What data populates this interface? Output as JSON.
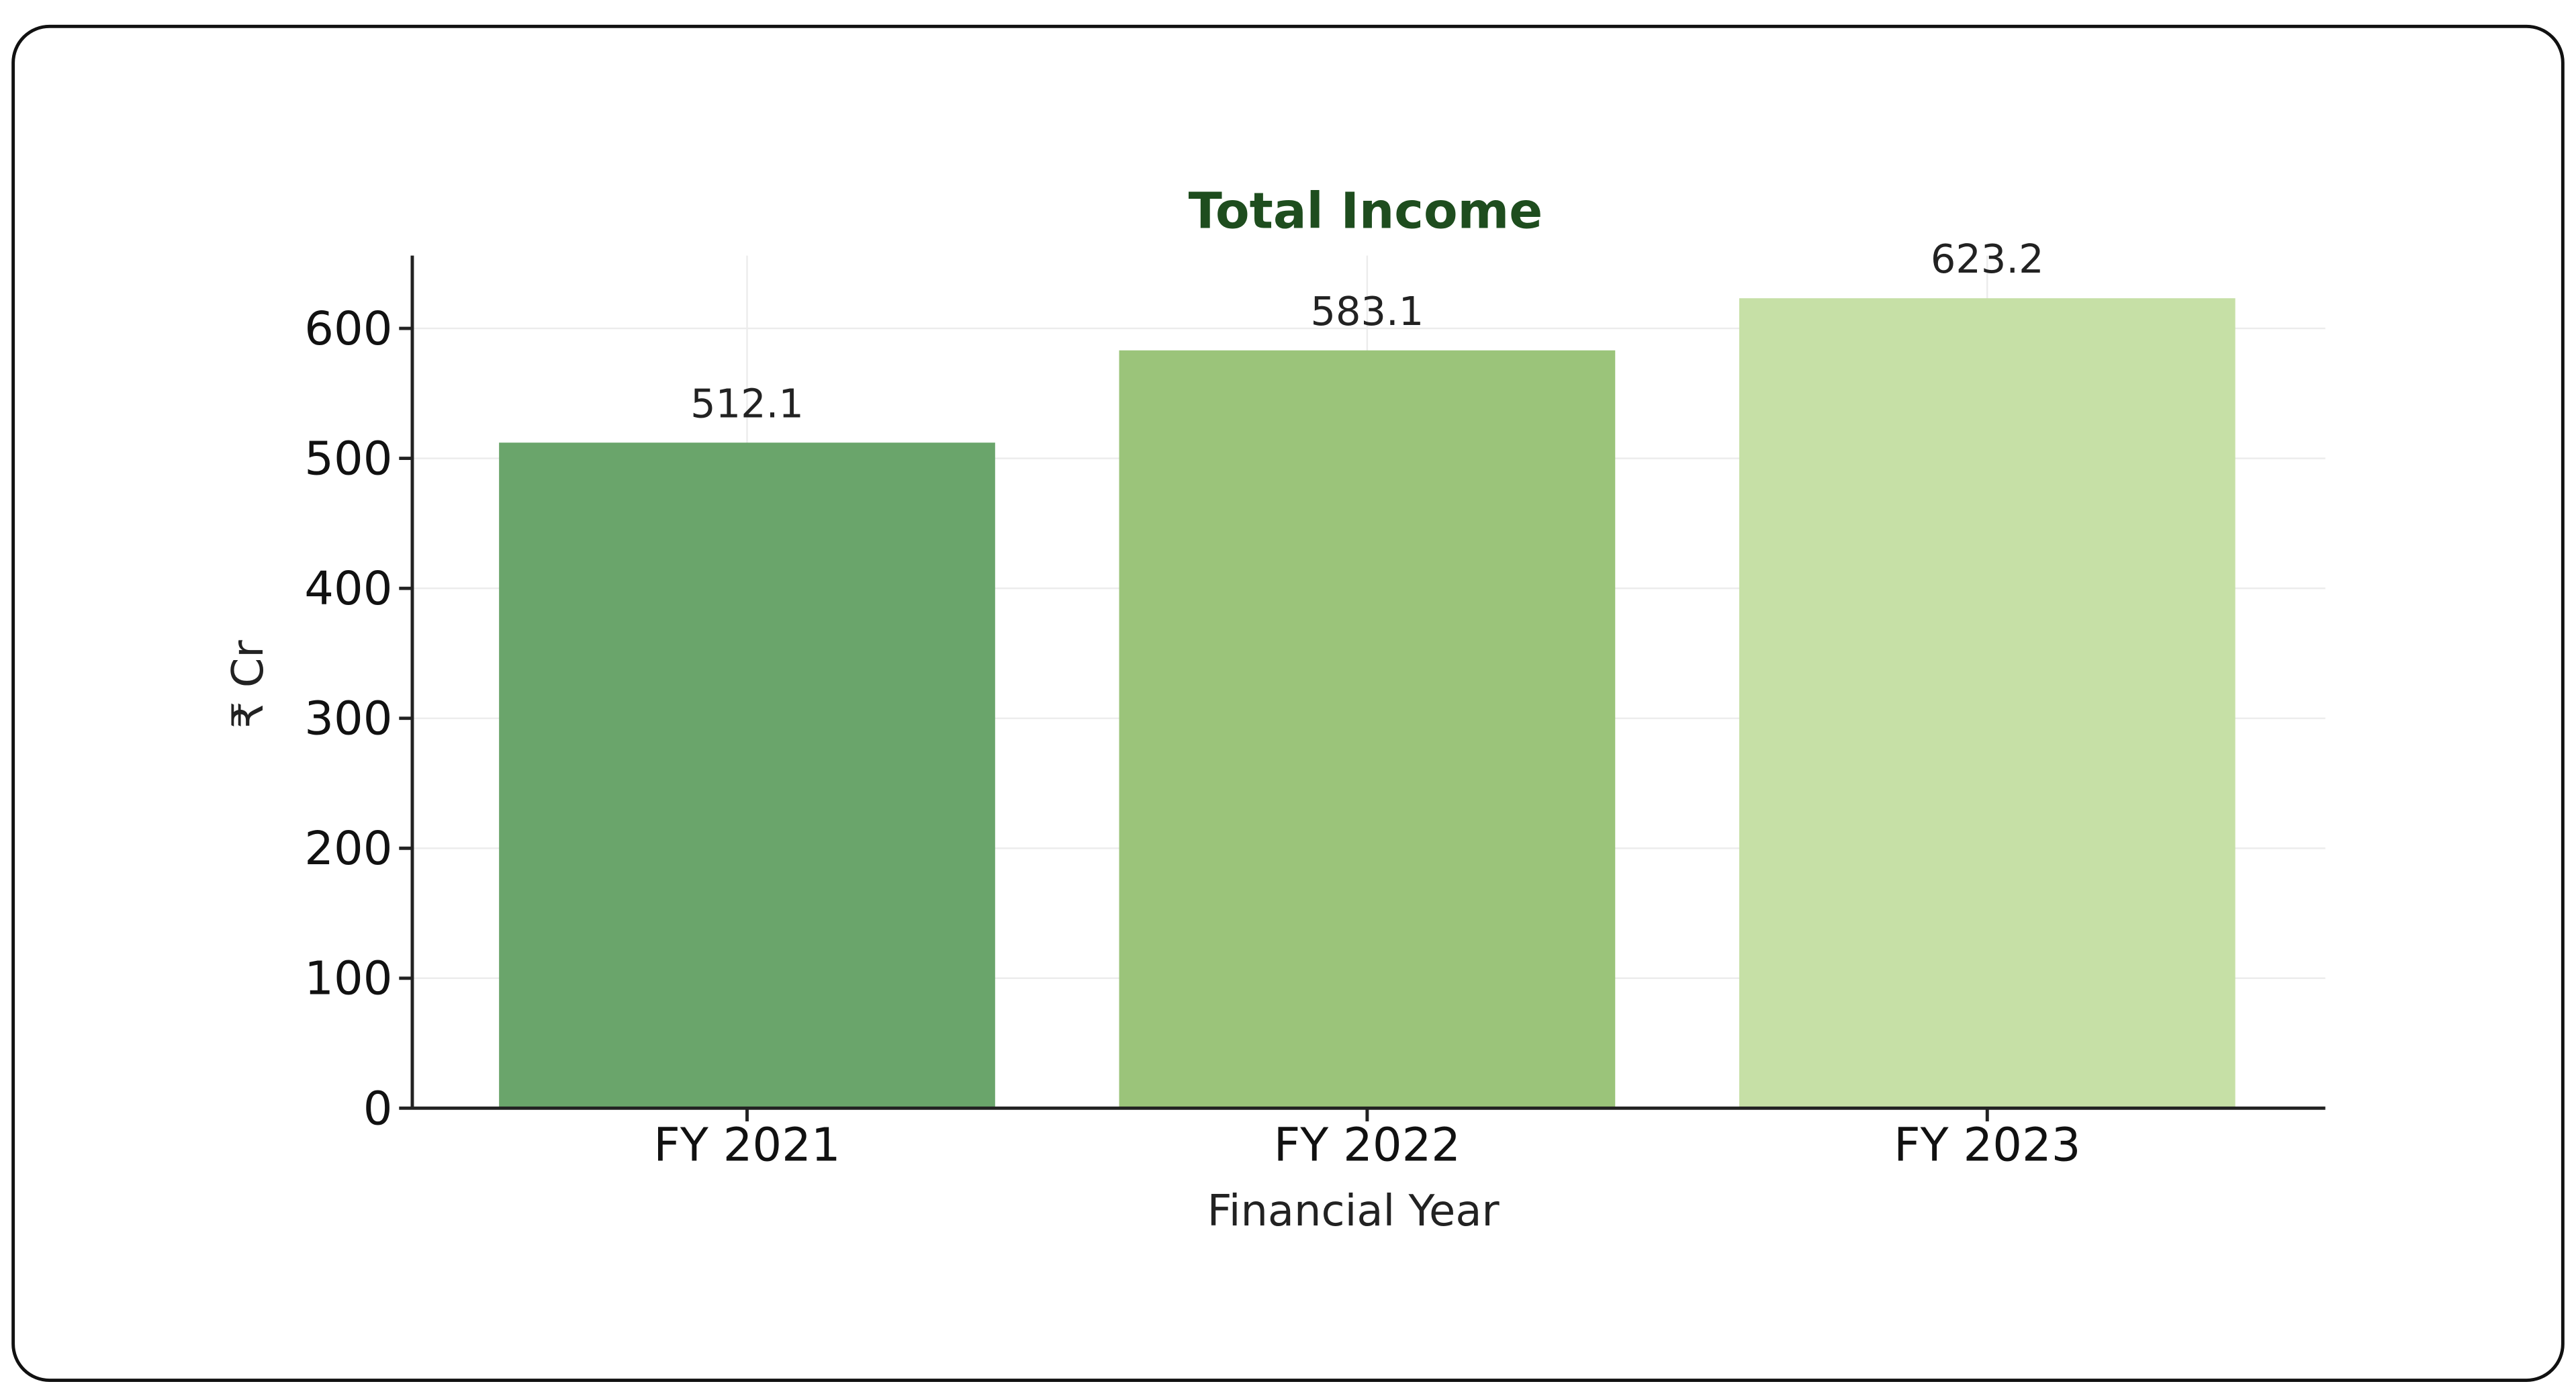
{
  "chart_data": {
    "type": "bar",
    "title": "Total Income",
    "categories": [
      "FY 2021",
      "FY 2022",
      "FY 2023"
    ],
    "values": [
      512.1,
      583.1,
      623.2
    ],
    "colors": [
      "#6aa56b",
      "#9bc47a",
      "#c6e0a6"
    ],
    "xlabel": "Financial Year",
    "ylabel": "₹ Cr",
    "ylim": [
      0,
      656
    ],
    "yticks": [
      0,
      100,
      200,
      300,
      400,
      500,
      600
    ],
    "grid": true
  }
}
